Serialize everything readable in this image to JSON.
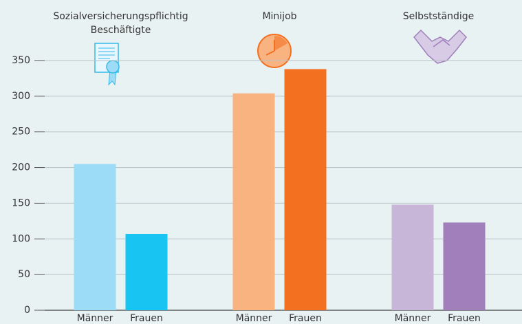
{
  "chart_data": {
    "type": "bar",
    "categories": [
      "Sozialversicherungspflichtig Beschäftigte",
      "Minijob",
      "Selbstständige"
    ],
    "series": [
      {
        "name": "Männer",
        "colors": [
          "#9ddcf6",
          "#f9b381",
          "#c8b6d9"
        ],
        "values": [
          205,
          304,
          148
        ]
      },
      {
        "name": "Frauen",
        "colors": [
          "#18c4f2",
          "#f37021",
          "#a07fba"
        ],
        "values": [
          107,
          338,
          123
        ]
      }
    ],
    "ylim": [
      0,
      350
    ],
    "yticks": [
      0,
      50,
      100,
      150,
      200,
      250,
      300,
      350
    ],
    "grid": true
  }
}
